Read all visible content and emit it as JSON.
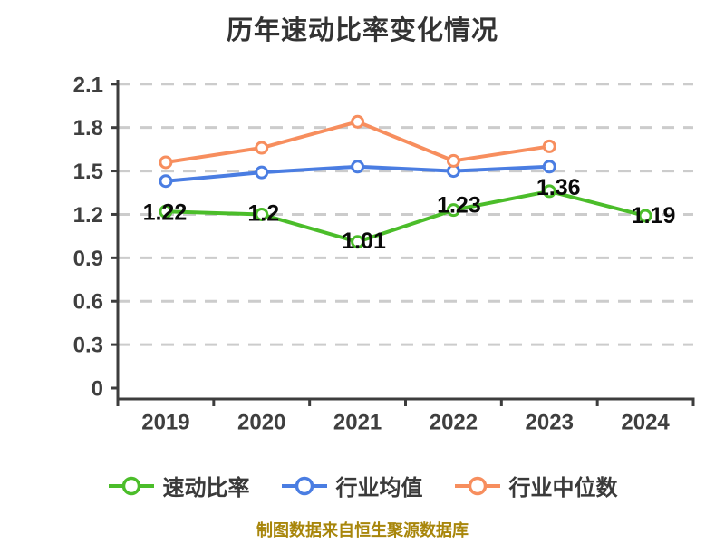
{
  "chart_data": {
    "type": "line",
    "title": "历年速动比率变化情况",
    "footer": "制图数据来自恒生聚源数据库",
    "categories": [
      "2019",
      "2020",
      "2021",
      "2022",
      "2023",
      "2024"
    ],
    "series": [
      {
        "key": "quick-ratio",
        "name": "速动比率",
        "color": "#4bbd2a",
        "values": [
          1.22,
          1.2,
          1.01,
          1.23,
          1.36,
          1.19
        ],
        "data_labels": [
          "1.22",
          "1.2",
          "1.01",
          "1.23",
          "1.36",
          "1.19"
        ]
      },
      {
        "key": "industry-average",
        "name": "行业均值",
        "color": "#4a7de2",
        "values": [
          1.43,
          1.49,
          1.53,
          1.5,
          1.53,
          null
        ],
        "data_labels": []
      },
      {
        "key": "industry-median",
        "name": "行业中位数",
        "color": "#f78e5e",
        "values": [
          1.56,
          1.66,
          1.84,
          1.57,
          1.67,
          null
        ],
        "data_labels": []
      }
    ],
    "ylim": [
      0,
      2.1
    ],
    "yticks": [
      0,
      0.3,
      0.6,
      0.9,
      1.2,
      1.5,
      1.8,
      2.1
    ],
    "ytick_labels": [
      "0",
      "0.3",
      "0.6",
      "0.9",
      "1.2",
      "1.5",
      "1.8",
      "2.1"
    ],
    "grid": "horizontal-dashed",
    "legend_position": "bottom",
    "colors": {
      "background": "#ffffff",
      "title": "#333333",
      "axis": "#3d3d3d",
      "grid": "#cccccc",
      "tick_label": "#3f3f3f",
      "data_label": "#0a0a0a",
      "footer": "#a8860b",
      "marker_fill": "#ffffff"
    }
  }
}
